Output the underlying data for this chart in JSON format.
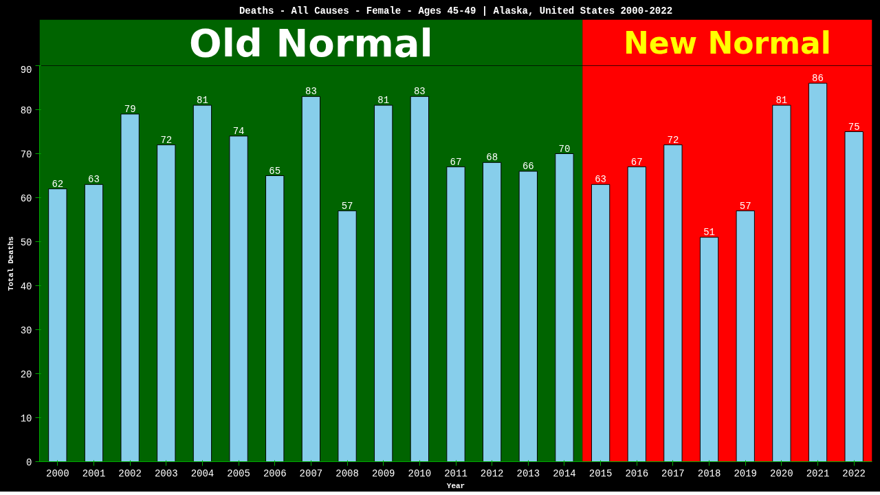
{
  "chart_data": {
    "type": "bar",
    "title": "Deaths - All Causes - Female - Ages 45-49 | Alaska, United States 2000-2022",
    "xlabel": "Year",
    "ylabel": "Total Deaths",
    "categories": [
      "2000",
      "2001",
      "2002",
      "2003",
      "2004",
      "2005",
      "2006",
      "2007",
      "2008",
      "2009",
      "2010",
      "2011",
      "2012",
      "2013",
      "2014",
      "2015",
      "2016",
      "2017",
      "2018",
      "2019",
      "2020",
      "2021",
      "2022"
    ],
    "values": [
      62,
      63,
      79,
      72,
      81,
      74,
      65,
      83,
      57,
      81,
      83,
      67,
      68,
      66,
      70,
      63,
      67,
      72,
      51,
      57,
      81,
      86,
      75
    ],
    "color": "#87ceeb",
    "ylim": [
      0,
      90
    ],
    "yticks": [
      0,
      10,
      20,
      30,
      40,
      50,
      60,
      70,
      80,
      90
    ],
    "grid": false,
    "data_labels": true,
    "bands": [
      {
        "axis": "x",
        "from": "2000",
        "to": "2014",
        "label": "Old Normal",
        "color": "#006400"
      },
      {
        "axis": "x",
        "from": "2015",
        "to": "2022",
        "label": "New Normal",
        "color": "#ff0000"
      }
    ]
  }
}
